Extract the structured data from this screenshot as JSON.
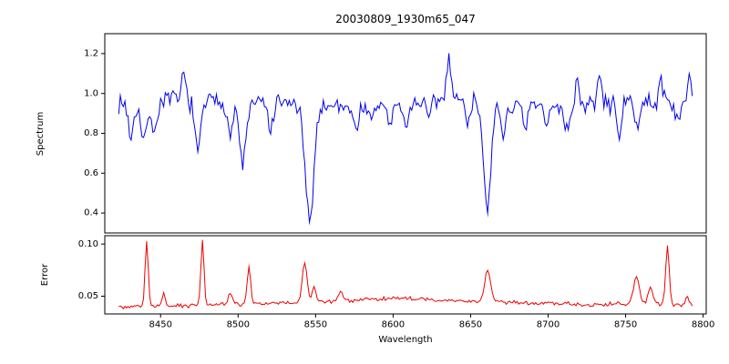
{
  "figure": {
    "background": "#ffffff",
    "frame_color": "#000000",
    "description": "Two stacked line plots sharing one x axis: a blue stellar spectrum (deep absorption lines near 8503, 8546 and 8661) and its red error curve."
  },
  "chart_data": [
    {
      "id": "spectrum-panel",
      "type": "line",
      "title": "20030809_1930m65_047",
      "ylabel": "Spectrum",
      "color": "#0000ee",
      "xlim": [
        8414,
        8802
      ],
      "ylim": [
        0.3,
        1.3
      ],
      "ytick_values": [
        0.4,
        0.6,
        0.8,
        1.0,
        1.2
      ],
      "ytick_labels": [
        "0.4",
        "0.6",
        "0.8",
        "1.0",
        "1.2"
      ],
      "x_start": 8423,
      "x_end": 8793,
      "x_step": 1.0,
      "noise_sigma": 0.032,
      "baseline": [
        [
          8423,
          0.95
        ],
        [
          8450,
          0.97
        ],
        [
          8480,
          0.96
        ],
        [
          8520,
          0.95
        ],
        [
          8560,
          0.94
        ],
        [
          8600,
          0.94
        ],
        [
          8640,
          0.97
        ],
        [
          8680,
          0.93
        ],
        [
          8720,
          0.94
        ],
        [
          8760,
          0.95
        ],
        [
          8793,
          0.96
        ]
      ],
      "features": [
        {
          "center": 8431,
          "amp": -0.18,
          "width": 1.6
        },
        {
          "center": 8439,
          "amp": -0.22,
          "width": 1.8
        },
        {
          "center": 8446,
          "amp": -0.18,
          "width": 1.6
        },
        {
          "center": 8465,
          "amp": 0.12,
          "width": 1.4
        },
        {
          "center": 8474,
          "amp": -0.27,
          "width": 1.8
        },
        {
          "center": 8495,
          "amp": -0.16,
          "width": 1.6
        },
        {
          "center": 8503,
          "amp": -0.3,
          "width": 2.2
        },
        {
          "center": 8521,
          "amp": -0.14,
          "width": 1.6
        },
        {
          "center": 8546,
          "amp": -0.58,
          "width": 2.8
        },
        {
          "center": 8576,
          "amp": -0.13,
          "width": 1.6
        },
        {
          "center": 8586,
          "amp": -0.1,
          "width": 1.4
        },
        {
          "center": 8598,
          "amp": -0.1,
          "width": 1.4
        },
        {
          "center": 8608,
          "amp": -0.12,
          "width": 1.5
        },
        {
          "center": 8623,
          "amp": -0.09,
          "width": 1.4
        },
        {
          "center": 8636,
          "amp": 0.22,
          "width": 1.5
        },
        {
          "center": 8648,
          "amp": -0.1,
          "width": 1.4
        },
        {
          "center": 8661,
          "amp": -0.52,
          "width": 2.4
        },
        {
          "center": 8671,
          "amp": -0.15,
          "width": 1.5
        },
        {
          "center": 8685,
          "amp": -0.12,
          "width": 1.5
        },
        {
          "center": 8699,
          "amp": -0.1,
          "width": 1.4
        },
        {
          "center": 8712,
          "amp": -0.13,
          "width": 1.5
        },
        {
          "center": 8719,
          "amp": 0.12,
          "width": 1.3
        },
        {
          "center": 8733,
          "amp": 0.14,
          "width": 1.4
        },
        {
          "center": 8746,
          "amp": -0.14,
          "width": 1.5
        },
        {
          "center": 8758,
          "amp": -0.11,
          "width": 1.4
        },
        {
          "center": 8773,
          "amp": 0.12,
          "width": 1.3
        },
        {
          "center": 8784,
          "amp": -0.12,
          "width": 1.4
        },
        {
          "center": 8791,
          "amp": 0.15,
          "width": 1.3
        }
      ]
    },
    {
      "id": "error-panel",
      "type": "line",
      "ylabel": "Error",
      "xlabel": "Wavelength",
      "color": "#ee0000",
      "xlim": [
        8414,
        8802
      ],
      "ylim": [
        0.033,
        0.108
      ],
      "ytick_values": [
        0.05,
        0.1
      ],
      "ytick_labels": [
        "0.05",
        "0.10"
      ],
      "xtick_values": [
        8450,
        8500,
        8550,
        8600,
        8650,
        8700,
        8750,
        8800
      ],
      "xtick_labels": [
        "8450",
        "8500",
        "8550",
        "8600",
        "8650",
        "8700",
        "8750",
        "8800"
      ],
      "x_start": 8423,
      "x_end": 8793,
      "x_step": 1.0,
      "noise_sigma": 0.0013,
      "baseline": [
        [
          8423,
          0.04
        ],
        [
          8470,
          0.041
        ],
        [
          8520,
          0.043
        ],
        [
          8560,
          0.045
        ],
        [
          8600,
          0.048
        ],
        [
          8640,
          0.046
        ],
        [
          8680,
          0.044
        ],
        [
          8730,
          0.042
        ],
        [
          8770,
          0.043
        ],
        [
          8793,
          0.041
        ]
      ],
      "features": [
        {
          "center": 8441,
          "amp": 0.062,
          "width": 1.0
        },
        {
          "center": 8452,
          "amp": 0.012,
          "width": 1.0
        },
        {
          "center": 8477,
          "amp": 0.063,
          "width": 1.0
        },
        {
          "center": 8495,
          "amp": 0.012,
          "width": 1.2
        },
        {
          "center": 8507,
          "amp": 0.035,
          "width": 1.2
        },
        {
          "center": 8543,
          "amp": 0.038,
          "width": 1.6
        },
        {
          "center": 8549,
          "amp": 0.015,
          "width": 1.2
        },
        {
          "center": 8566,
          "amp": 0.008,
          "width": 1.5
        },
        {
          "center": 8661,
          "amp": 0.03,
          "width": 1.8
        },
        {
          "center": 8757,
          "amp": 0.026,
          "width": 1.8
        },
        {
          "center": 8766,
          "amp": 0.016,
          "width": 1.4
        },
        {
          "center": 8777,
          "amp": 0.055,
          "width": 1.1
        },
        {
          "center": 8790,
          "amp": 0.008,
          "width": 1.2
        }
      ]
    }
  ]
}
